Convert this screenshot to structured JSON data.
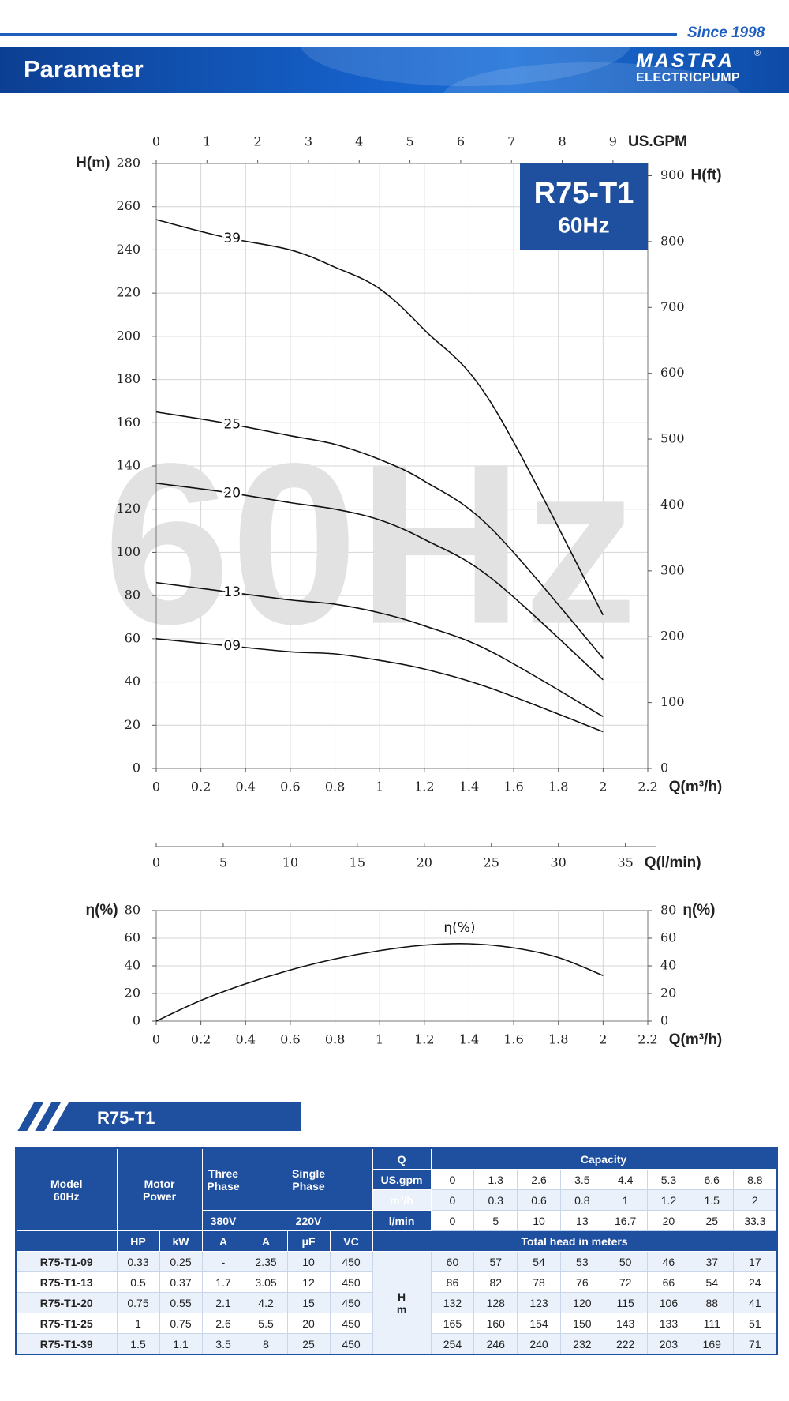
{
  "header": {
    "since": "Since 1998",
    "title": "Parameter",
    "brand_logo": "MASTRA",
    "brand_mark": "®",
    "brand": "ELECTRICPUMP"
  },
  "chart_data": [
    {
      "type": "line",
      "title": "R75-T1",
      "subtitle": "60Hz",
      "watermark": "60Hz",
      "xlabel": "Q(m³/h)",
      "ylabel": "H(m)",
      "x2label": "US.GPM",
      "y2label": "H(ft)",
      "x": [
        0,
        0.3,
        0.6,
        0.8,
        1,
        1.2,
        1.5,
        2
      ],
      "xlim": [
        0,
        2.2
      ],
      "xticks": [
        0,
        0.2,
        0.4,
        0.6,
        0.8,
        1,
        1.2,
        1.4,
        1.6,
        1.8,
        2,
        2.2
      ],
      "ylim": [
        0,
        280
      ],
      "yticks": [
        0,
        20,
        40,
        60,
        80,
        100,
        120,
        140,
        160,
        180,
        200,
        220,
        240,
        260,
        280
      ],
      "x2lim": [
        0,
        9.686
      ],
      "x2ticks": [
        0,
        1,
        2,
        3,
        4,
        5,
        6,
        7,
        8,
        9
      ],
      "y2lim": [
        0,
        918.6
      ],
      "y2ticks": [
        0,
        100,
        200,
        300,
        400,
        500,
        600,
        700,
        800,
        900
      ],
      "grid": true,
      "series": [
        {
          "name": "39",
          "color": "#111111",
          "values": [
            254,
            246,
            240,
            232,
            222,
            203,
            169,
            71
          ]
        },
        {
          "name": "25",
          "color": "#111111",
          "values": [
            165,
            160,
            154,
            150,
            143,
            133,
            111,
            51
          ]
        },
        {
          "name": "20",
          "color": "#111111",
          "values": [
            132,
            128,
            123,
            120,
            115,
            106,
            88,
            41
          ]
        },
        {
          "name": "13",
          "color": "#111111",
          "values": [
            86,
            82,
            78,
            76,
            72,
            66,
            54,
            24
          ]
        },
        {
          "name": "09",
          "color": "#111111",
          "values": [
            60,
            57,
            54,
            53,
            50,
            46,
            37,
            17
          ]
        }
      ]
    },
    {
      "type": "axis",
      "xlabel": "Q(l/min)",
      "xlim": [
        0,
        36.67
      ],
      "xticks": [
        0,
        5,
        10,
        15,
        20,
        25,
        30,
        35
      ]
    },
    {
      "type": "line",
      "xlabel": "Q(m³/h)",
      "ylabel": "η(%)",
      "y2label": "η(%)",
      "x": [
        0,
        0.2,
        0.4,
        0.6,
        0.8,
        1,
        1.2,
        1.4,
        1.6,
        1.8,
        2
      ],
      "xlim": [
        0,
        2.2
      ],
      "xticks": [
        0,
        0.2,
        0.4,
        0.6,
        0.8,
        1,
        1.2,
        1.4,
        1.6,
        1.8,
        2,
        2.2
      ],
      "ylim": [
        0,
        80
      ],
      "yticks": [
        0,
        20,
        40,
        60,
        80
      ],
      "y2lim": [
        0,
        80
      ],
      "y2ticks": [
        0,
        20,
        40,
        60,
        80
      ],
      "grid": true,
      "series": [
        {
          "name": "η(%)",
          "color": "#111111",
          "values": [
            0,
            15,
            27,
            37,
            45,
            51,
            55,
            56,
            53,
            46,
            33
          ]
        }
      ]
    }
  ],
  "table": {
    "section_title": "R75-T1",
    "head": {
      "model": [
        "Model",
        "60Hz"
      ],
      "motor_power": [
        "Motor",
        "Power"
      ],
      "three_phase": [
        "Three",
        "Phase"
      ],
      "single_phase": [
        "Single",
        "Phase"
      ],
      "q": "Q",
      "capacity": "Capacity",
      "units": [
        "US.gpm",
        "m³/h",
        "l/min"
      ],
      "voltage_three": "380V",
      "voltage_single": "220V",
      "capacity_rows": [
        [
          0,
          1.3,
          2.6,
          3.5,
          4.4,
          5.3,
          6.6,
          8.8
        ],
        [
          0,
          0.3,
          0.6,
          0.8,
          1,
          1.2,
          1.5,
          2
        ],
        [
          0,
          5,
          10,
          13,
          16.7,
          20,
          25,
          33.3
        ]
      ],
      "subheads": [
        "HP",
        "kW",
        "A",
        "A",
        "μF",
        "VC"
      ],
      "total_head": "Total head in meters",
      "h_label": [
        "H",
        "m"
      ]
    },
    "rows": [
      [
        "R75-T1-09",
        0.33,
        0.25,
        "-",
        2.35,
        10,
        450,
        60,
        57,
        54,
        53,
        50,
        46,
        37,
        17
      ],
      [
        "R75-T1-13",
        0.5,
        0.37,
        1.7,
        3.05,
        12,
        450,
        86,
        82,
        78,
        76,
        72,
        66,
        54,
        24
      ],
      [
        "R75-T1-20",
        0.75,
        0.55,
        2.1,
        4.2,
        15,
        450,
        132,
        128,
        123,
        120,
        115,
        106,
        88,
        41
      ],
      [
        "R75-T1-25",
        1,
        0.75,
        2.6,
        5.5,
        20,
        450,
        165,
        160,
        154,
        150,
        143,
        133,
        111,
        51
      ],
      [
        "R75-T1-39",
        1.5,
        1.1,
        3.5,
        8,
        25,
        450,
        254,
        246,
        240,
        232,
        222,
        203,
        169,
        71
      ]
    ]
  }
}
